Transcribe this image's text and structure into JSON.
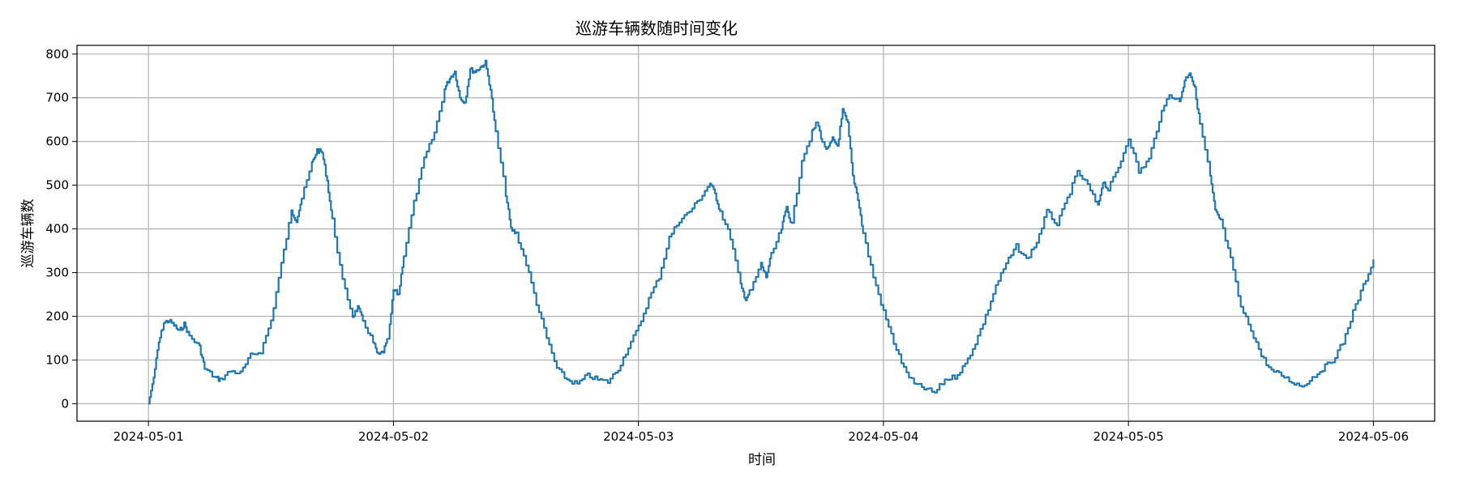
{
  "chart_data": {
    "type": "line",
    "title": "巡游车辆数随时间变化",
    "xlabel": "时间",
    "ylabel": "巡游车辆数",
    "x_range": [
      "2024-04-30T17:00",
      "2024-05-06T06:00"
    ],
    "ylim": [
      -40,
      820
    ],
    "grid": true,
    "x_ticks": [
      "2024-05-01",
      "2024-05-02",
      "2024-05-03",
      "2024-05-04",
      "2024-05-05",
      "2024-05-06"
    ],
    "y_ticks": [
      0,
      100,
      200,
      300,
      400,
      500,
      600,
      700,
      800
    ],
    "series": [
      {
        "color": "#1f77b4",
        "points": [
          [
            "2024-05-01T00:00",
            0
          ],
          [
            "2024-05-01T00:30",
            60
          ],
          [
            "2024-05-01T01:00",
            140
          ],
          [
            "2024-05-01T01:30",
            185
          ],
          [
            "2024-05-01T02:00",
            190
          ],
          [
            "2024-05-01T02:30",
            180
          ],
          [
            "2024-05-01T03:00",
            165
          ],
          [
            "2024-05-01T03:30",
            182
          ],
          [
            "2024-05-01T04:00",
            155
          ],
          [
            "2024-05-01T05:00",
            130
          ],
          [
            "2024-05-01T05:30",
            80
          ],
          [
            "2024-05-01T06:30",
            60
          ],
          [
            "2024-05-01T07:00",
            55
          ],
          [
            "2024-05-01T08:00",
            75
          ],
          [
            "2024-05-01T09:00",
            70
          ],
          [
            "2024-05-01T10:00",
            110
          ],
          [
            "2024-05-01T11:00",
            120
          ],
          [
            "2024-05-01T12:00",
            190
          ],
          [
            "2024-05-01T13:00",
            320
          ],
          [
            "2024-05-01T14:00",
            440
          ],
          [
            "2024-05-01T14:30",
            420
          ],
          [
            "2024-05-01T15:00",
            470
          ],
          [
            "2024-05-01T16:00",
            550
          ],
          [
            "2024-05-01T16:30",
            580
          ],
          [
            "2024-05-01T17:00",
            575
          ],
          [
            "2024-05-01T17:30",
            510
          ],
          [
            "2024-05-01T18:00",
            420
          ],
          [
            "2024-05-01T19:00",
            280
          ],
          [
            "2024-05-01T20:00",
            200
          ],
          [
            "2024-05-01T20:30",
            220
          ],
          [
            "2024-05-01T21:00",
            190
          ],
          [
            "2024-05-01T22:00",
            140
          ],
          [
            "2024-05-01T22:30",
            110
          ],
          [
            "2024-05-01T23:00",
            120
          ],
          [
            "2024-05-01T23:30",
            150
          ],
          [
            "2024-05-02T00:00",
            260
          ],
          [
            "2024-05-02T00:30",
            250
          ],
          [
            "2024-05-02T01:00",
            340
          ],
          [
            "2024-05-02T02:00",
            460
          ],
          [
            "2024-05-02T03:00",
            560
          ],
          [
            "2024-05-02T04:00",
            620
          ],
          [
            "2024-05-02T05:00",
            720
          ],
          [
            "2024-05-02T05:30",
            745
          ],
          [
            "2024-05-02T06:00",
            760
          ],
          [
            "2024-05-02T06:30",
            700
          ],
          [
            "2024-05-02T07:00",
            690
          ],
          [
            "2024-05-02T07:30",
            765
          ],
          [
            "2024-05-02T08:00",
            760
          ],
          [
            "2024-05-02T08:30",
            770
          ],
          [
            "2024-05-02T09:00",
            780
          ],
          [
            "2024-05-02T09:30",
            720
          ],
          [
            "2024-05-02T10:00",
            620
          ],
          [
            "2024-05-02T11:00",
            480
          ],
          [
            "2024-05-02T11:30",
            400
          ],
          [
            "2024-05-02T12:00",
            390
          ],
          [
            "2024-05-02T13:00",
            320
          ],
          [
            "2024-05-02T14:00",
            230
          ],
          [
            "2024-05-02T15:00",
            150
          ],
          [
            "2024-05-02T16:00",
            80
          ],
          [
            "2024-05-02T17:00",
            55
          ],
          [
            "2024-05-02T18:00",
            45
          ],
          [
            "2024-05-02T19:00",
            65
          ],
          [
            "2024-05-02T20:00",
            55
          ],
          [
            "2024-05-02T21:00",
            50
          ],
          [
            "2024-05-02T22:00",
            80
          ],
          [
            "2024-05-02T23:00",
            130
          ],
          [
            "2024-05-03T00:00",
            175
          ],
          [
            "2024-05-03T01:00",
            240
          ],
          [
            "2024-05-03T02:00",
            290
          ],
          [
            "2024-05-03T03:00",
            380
          ],
          [
            "2024-05-03T04:00",
            420
          ],
          [
            "2024-05-03T05:00",
            440
          ],
          [
            "2024-05-03T06:00",
            470
          ],
          [
            "2024-05-03T07:00",
            505
          ],
          [
            "2024-05-03T07:30",
            480
          ],
          [
            "2024-05-03T08:00",
            440
          ],
          [
            "2024-05-03T09:00",
            380
          ],
          [
            "2024-05-03T10:00",
            270
          ],
          [
            "2024-05-03T10:30",
            240
          ],
          [
            "2024-05-03T11:00",
            260
          ],
          [
            "2024-05-03T12:00",
            320
          ],
          [
            "2024-05-03T12:30",
            290
          ],
          [
            "2024-05-03T13:00",
            340
          ],
          [
            "2024-05-03T14:00",
            400
          ],
          [
            "2024-05-03T14:30",
            450
          ],
          [
            "2024-05-03T15:00",
            410
          ],
          [
            "2024-05-03T16:00",
            560
          ],
          [
            "2024-05-03T17:00",
            620
          ],
          [
            "2024-05-03T17:30",
            645
          ],
          [
            "2024-05-03T18:00",
            600
          ],
          [
            "2024-05-03T18:30",
            580
          ],
          [
            "2024-05-03T19:00",
            605
          ],
          [
            "2024-05-03T19:30",
            590
          ],
          [
            "2024-05-03T20:00",
            670
          ],
          [
            "2024-05-03T20:30",
            640
          ],
          [
            "2024-05-03T21:00",
            520
          ],
          [
            "2024-05-03T21:30",
            470
          ],
          [
            "2024-05-03T22:00",
            390
          ],
          [
            "2024-05-03T23:00",
            290
          ],
          [
            "2024-05-04T00:00",
            210
          ],
          [
            "2024-05-04T01:00",
            140
          ],
          [
            "2024-05-04T02:00",
            80
          ],
          [
            "2024-05-04T03:00",
            45
          ],
          [
            "2024-05-04T04:00",
            35
          ],
          [
            "2024-05-04T05:00",
            25
          ],
          [
            "2024-05-04T06:00",
            55
          ],
          [
            "2024-05-04T07:00",
            62
          ],
          [
            "2024-05-04T08:00",
            90
          ],
          [
            "2024-05-04T09:00",
            140
          ],
          [
            "2024-05-04T10:00",
            200
          ],
          [
            "2024-05-04T11:00",
            270
          ],
          [
            "2024-05-04T12:00",
            320
          ],
          [
            "2024-05-04T13:00",
            360
          ],
          [
            "2024-05-04T14:00",
            330
          ],
          [
            "2024-05-04T15:00",
            370
          ],
          [
            "2024-05-04T16:00",
            440
          ],
          [
            "2024-05-04T17:00",
            410
          ],
          [
            "2024-05-04T18:00",
            470
          ],
          [
            "2024-05-04T19:00",
            530
          ],
          [
            "2024-05-04T20:00",
            500
          ],
          [
            "2024-05-04T21:00",
            450
          ],
          [
            "2024-05-04T21:30",
            510
          ],
          [
            "2024-05-04T22:00",
            490
          ],
          [
            "2024-05-04T23:00",
            540
          ],
          [
            "2024-05-05T00:00",
            610
          ],
          [
            "2024-05-05T01:00",
            530
          ],
          [
            "2024-05-05T02:00",
            560
          ],
          [
            "2024-05-05T03:00",
            650
          ],
          [
            "2024-05-05T04:00",
            710
          ],
          [
            "2024-05-05T05:00",
            690
          ],
          [
            "2024-05-05T05:30",
            740
          ],
          [
            "2024-05-05T06:00",
            760
          ],
          [
            "2024-05-05T06:30",
            720
          ],
          [
            "2024-05-05T07:00",
            640
          ],
          [
            "2024-05-05T08:00",
            520
          ],
          [
            "2024-05-05T08:30",
            440
          ],
          [
            "2024-05-05T09:00",
            420
          ],
          [
            "2024-05-05T10:00",
            330
          ],
          [
            "2024-05-05T11:00",
            220
          ],
          [
            "2024-05-05T12:00",
            170
          ],
          [
            "2024-05-05T13:00",
            110
          ],
          [
            "2024-05-05T14:00",
            75
          ],
          [
            "2024-05-05T15:00",
            65
          ],
          [
            "2024-05-05T16:00",
            50
          ],
          [
            "2024-05-05T17:00",
            40
          ],
          [
            "2024-05-05T18:00",
            60
          ],
          [
            "2024-05-05T19:00",
            80
          ],
          [
            "2024-05-05T20:00",
            100
          ],
          [
            "2024-05-05T21:00",
            140
          ],
          [
            "2024-05-05T22:00",
            210
          ],
          [
            "2024-05-05T23:00",
            270
          ],
          [
            "2024-05-06T00:00",
            330
          ]
        ]
      }
    ]
  }
}
